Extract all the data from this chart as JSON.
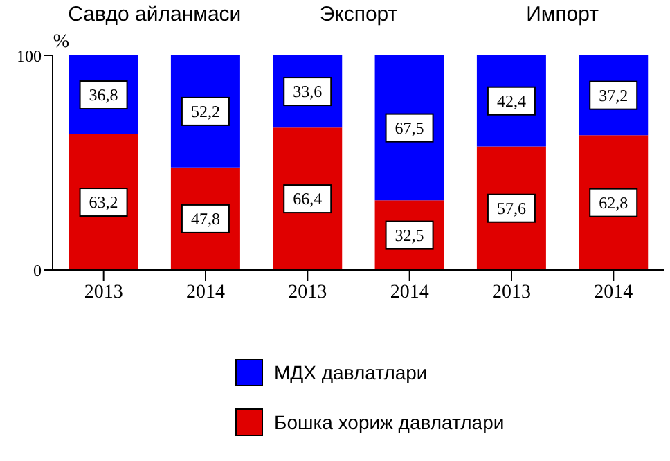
{
  "chart_data": {
    "type": "bar",
    "stacked": true,
    "categories": [
      "2013",
      "2014",
      "2013",
      "2014",
      "2013",
      "2014"
    ],
    "series": [
      {
        "name": "Бошка хориж давлатлари",
        "color": "#e00000",
        "values": [
          63.2,
          47.8,
          66.4,
          32.5,
          57.6,
          62.8
        ],
        "value_labels": [
          "63,2",
          "47,8",
          "66,4",
          "32,5",
          "57,6",
          "62,8"
        ]
      },
      {
        "name": "МДХ давлатлари",
        "color": "#0000ff",
        "values": [
          36.8,
          52.2,
          33.6,
          67.5,
          42.4,
          37.2
        ],
        "value_labels": [
          "36,8",
          "52,2",
          "33,6",
          "67,5",
          "42,4",
          "37,2"
        ]
      }
    ],
    "ylabel": "%",
    "ylim": [
      0,
      100
    ],
    "yticks": [
      0,
      100
    ],
    "legend": "bottom",
    "annotations": [
      "Савдо айланмаси",
      "Экспорт",
      "Импорт"
    ]
  }
}
